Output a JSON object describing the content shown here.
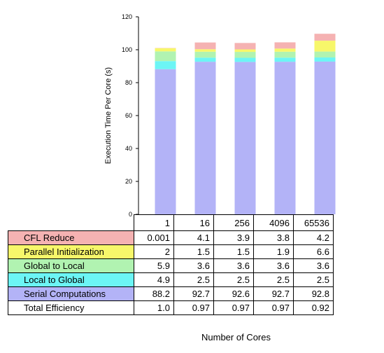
{
  "chart_data": {
    "type": "bar",
    "stacked": true,
    "categories": [
      "1",
      "16",
      "256",
      "4096",
      "65536"
    ],
    "series": [
      {
        "name": "Serial Computations",
        "color": "#b3b3f7",
        "values": [
          88.2,
          92.7,
          92.6,
          92.7,
          92.8
        ]
      },
      {
        "name": "Local to Global",
        "color": "#6cf5f5",
        "values": [
          4.9,
          2.5,
          2.5,
          2.5,
          2.5
        ]
      },
      {
        "name": "Global to Local",
        "color": "#b1f3b1",
        "values": [
          5.9,
          3.6,
          3.6,
          3.6,
          3.6
        ]
      },
      {
        "name": "Parallel Initialization",
        "color": "#f7f76a",
        "values": [
          2,
          1.5,
          1.5,
          1.9,
          6.6
        ]
      },
      {
        "name": "CFL Reduce",
        "color": "#f5b2b2",
        "values": [
          0.001,
          4.1,
          3.9,
          3.8,
          4.2
        ]
      }
    ],
    "ylabel": "Execution Time Per Core (s)",
    "xlabel": "Number of Cores",
    "ylim": [
      0,
      120
    ],
    "yticks": [
      "0",
      "20",
      "40",
      "60",
      "80",
      "100",
      "120"
    ],
    "grid": false
  },
  "table": {
    "header": [
      "1",
      "16",
      "256",
      "4096",
      "65536"
    ],
    "rows": [
      {
        "label": "CFL Reduce",
        "color": "#f5b2b2",
        "cells": [
          "0.001",
          "4.1",
          "3.9",
          "3.8",
          "4.2"
        ]
      },
      {
        "label": "Parallel Initialization",
        "color": "#f7f76a",
        "cells": [
          "2",
          "1.5",
          "1.5",
          "1.9",
          "6.6"
        ]
      },
      {
        "label": "Global to Local",
        "color": "#b1f3b1",
        "cells": [
          "5.9",
          "3.6",
          "3.6",
          "3.6",
          "3.6"
        ]
      },
      {
        "label": "Local to Global",
        "color": "#6cf5f5",
        "cells": [
          "4.9",
          "2.5",
          "2.5",
          "2.5",
          "2.5"
        ]
      },
      {
        "label": "Serial Computations",
        "color": "#b3b3f7",
        "cells": [
          "88.2",
          "92.7",
          "92.6",
          "92.7",
          "92.8"
        ]
      },
      {
        "label": "Total Efficiency",
        "color": "#ffffff",
        "cells": [
          "1.0",
          "0.97",
          "0.97",
          "0.97",
          "0.92"
        ]
      }
    ]
  }
}
